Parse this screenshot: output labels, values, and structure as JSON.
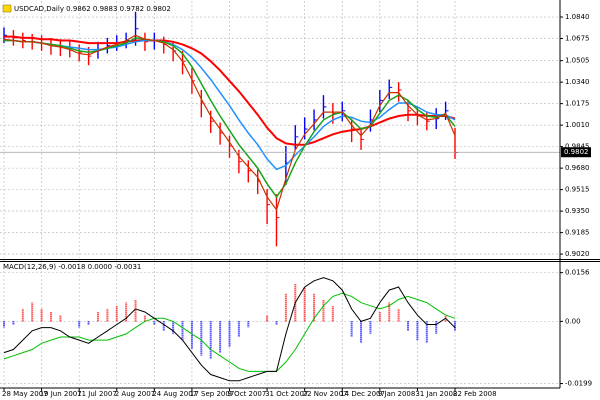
{
  "chart_data": [
    {
      "type": "ohlc",
      "title": "USDCAD,Daily  0.9862 0.9883 0.9782 0.9802",
      "categories": [
        "28 May 2007",
        null,
        null,
        null,
        "19 Jun 2007",
        null,
        null,
        null,
        "11 Jul 2007",
        null,
        null,
        null,
        "2 Aug 2007",
        null,
        null,
        null,
        "24 Aug 2007",
        null,
        null,
        null,
        "17 Sep 2007",
        null,
        null,
        null,
        "9 Oct 2007",
        null,
        null,
        null,
        "31 Oct 2007",
        null,
        null,
        null,
        "22 Nov 2007",
        null,
        null,
        null,
        "14 Dec 2007",
        null,
        null,
        null,
        "9 Jan 2008",
        null,
        null,
        null,
        "31 Jan 2008",
        null,
        null,
        null,
        "22 Feb 2008"
      ],
      "high": [
        1.076,
        1.074,
        1.072,
        1.071,
        1.07,
        1.068,
        1.067,
        1.066,
        1.063,
        1.061,
        1.065,
        1.068,
        1.07,
        1.072,
        1.088,
        1.072,
        1.072,
        1.069,
        1.065,
        1.058,
        1.045,
        1.028,
        1.012,
        1.003,
        0.993,
        0.982,
        0.974,
        0.967,
        0.952,
        0.948,
        0.985,
        1.001,
        1.007,
        1.013,
        1.024,
        1.018,
        1.019,
        1.006,
        0.999,
        1.013,
        1.028,
        1.036,
        1.034,
        1.02,
        1.015,
        1.011,
        1.014,
        1.019,
        0.999
      ],
      "low": [
        1.064,
        1.062,
        1.06,
        1.059,
        1.058,
        1.055,
        1.054,
        1.053,
        1.05,
        1.047,
        1.052,
        1.056,
        1.058,
        1.06,
        1.062,
        1.058,
        1.059,
        1.056,
        1.05,
        1.04,
        1.025,
        1.007,
        0.995,
        0.986,
        0.976,
        0.964,
        0.957,
        0.948,
        0.925,
        0.908,
        0.955,
        0.982,
        0.99,
        0.997,
        1.006,
        1.002,
        1.004,
        0.988,
        0.982,
        0.996,
        1.011,
        1.021,
        1.019,
        1.004,
        1.001,
        0.997,
        0.998,
        1.005,
        0.975
      ],
      "close": [
        1.07,
        1.068,
        1.066,
        1.065,
        1.064,
        1.062,
        1.061,
        1.06,
        1.057,
        1.054,
        1.059,
        1.062,
        1.064,
        1.066,
        1.075,
        1.065,
        1.066,
        1.063,
        1.058,
        1.05,
        1.035,
        1.018,
        1.004,
        0.995,
        0.985,
        0.973,
        0.966,
        0.958,
        0.94,
        0.93,
        0.972,
        0.992,
        0.998,
        1.005,
        1.015,
        1.01,
        1.012,
        0.998,
        0.99,
        1.005,
        1.02,
        1.03,
        1.028,
        1.012,
        1.008,
        1.004,
        1.006,
        1.012,
        0.98
      ],
      "up_color": "#0000ff",
      "down_color": "#ff0000",
      "lines": [
        {
          "color": "#ff0000",
          "width": 2,
          "values": [
            1.069,
            1.069,
            1.068,
            1.068,
            1.067,
            1.067,
            1.066,
            1.066,
            1.065,
            1.064,
            1.064,
            1.064,
            1.064,
            1.065,
            1.066,
            1.066,
            1.066,
            1.066,
            1.065,
            1.063,
            1.06,
            1.056,
            1.05,
            1.043,
            1.035,
            1.027,
            1.018,
            1.009,
            0.999,
            0.991,
            0.987,
            0.986,
            0.986,
            0.988,
            0.991,
            0.994,
            0.996,
            0.997,
            0.998,
            1.0,
            1.003,
            1.006,
            1.008,
            1.009,
            1.009,
            1.008,
            1.008,
            1.008,
            1.006
          ]
        },
        {
          "color": "#1e90ff",
          "width": 1.5,
          "values": [
            1.066,
            1.066,
            1.065,
            1.065,
            1.064,
            1.063,
            1.062,
            1.061,
            1.06,
            1.059,
            1.059,
            1.06,
            1.061,
            1.063,
            1.065,
            1.066,
            1.066,
            1.065,
            1.063,
            1.059,
            1.053,
            1.045,
            1.036,
            1.026,
            1.016,
            1.005,
            0.995,
            0.986,
            0.975,
            0.967,
            0.97,
            0.978,
            0.985,
            0.992,
            1.0,
            1.005,
            1.008,
            1.007,
            1.004,
            1.003,
            1.007,
            1.013,
            1.018,
            1.018,
            1.015,
            1.011,
            1.009,
            1.009,
            1.005
          ]
        },
        {
          "color": "#1aa31a",
          "width": 1.5,
          "values": [
            1.066,
            1.066,
            1.065,
            1.065,
            1.064,
            1.063,
            1.062,
            1.06,
            1.058,
            1.057,
            1.058,
            1.06,
            1.062,
            1.064,
            1.068,
            1.067,
            1.066,
            1.065,
            1.062,
            1.056,
            1.046,
            1.033,
            1.02,
            1.008,
            0.997,
            0.986,
            0.977,
            0.968,
            0.956,
            0.946,
            0.956,
            0.972,
            0.985,
            0.996,
            1.005,
            1.009,
            1.011,
            1.005,
            0.998,
            1.0,
            1.01,
            1.02,
            1.024,
            1.02,
            1.013,
            1.008,
            1.007,
            1.009,
            1.0
          ]
        },
        {
          "color": "#c83200",
          "width": 1.2,
          "values": [
            1.067,
            1.066,
            1.065,
            1.065,
            1.064,
            1.062,
            1.061,
            1.059,
            1.056,
            1.055,
            1.058,
            1.061,
            1.063,
            1.066,
            1.07,
            1.067,
            1.066,
            1.064,
            1.059,
            1.05,
            1.036,
            1.021,
            1.008,
            0.998,
            0.988,
            0.977,
            0.969,
            0.961,
            0.946,
            0.936,
            0.96,
            0.982,
            0.994,
            1.002,
            1.011,
            1.011,
            1.011,
            1.001,
            0.993,
            1.001,
            1.016,
            1.026,
            1.026,
            1.016,
            1.009,
            1.005,
            1.006,
            1.01,
            0.993
          ]
        }
      ],
      "last_price": 0.9802,
      "ylim": [
        0.899,
        1.094
      ],
      "yticks": [
        {
          "value": 1.084,
          "label": "1.0840"
        },
        1.0675,
        1.0505,
        {
          "value": 1.034,
          "label": "1.0340"
        },
        1.0175,
        {
          "value": 1.001,
          "label": "1.0010"
        },
        0.9845,
        {
          "value": 0.968,
          "label": "0.9680"
        },
        0.9515,
        {
          "value": 0.935,
          "label": "0.9350"
        },
        0.9185,
        {
          "value": 0.902,
          "label": "0.9020"
        }
      ],
      "grid": true
    },
    {
      "type": "macd",
      "title": "MACD(12,26,9) -0.0018 0.0000 -0.0031",
      "histogram": [
        -0.002,
        -0.001,
        0.004,
        0.006,
        0.004,
        0.003,
        0.002,
        0.0,
        -0.002,
        -0.001,
        0.003,
        0.004,
        0.005,
        0.006,
        0.007,
        0.002,
        -0.001,
        -0.003,
        -0.004,
        -0.006,
        -0.009,
        -0.011,
        -0.012,
        -0.01,
        -0.008,
        -0.005,
        -0.002,
        0.0,
        0.002,
        -0.001,
        0.009,
        0.012,
        0.011,
        0.009,
        0.007,
        0.005,
        0.0,
        -0.005,
        -0.007,
        -0.004,
        0.003,
        0.006,
        0.004,
        -0.003,
        -0.006,
        -0.007,
        -0.004,
        0.002,
        -0.003
      ],
      "positive_color": "#ff0000",
      "negative_color": "#0000ff",
      "macd": [
        -0.01,
        -0.009,
        -0.006,
        -0.003,
        -0.002,
        -0.002,
        -0.003,
        -0.005,
        -0.006,
        -0.007,
        -0.005,
        -0.003,
        -0.001,
        0.001,
        0.004,
        0.003,
        0.001,
        -0.001,
        -0.003,
        -0.006,
        -0.01,
        -0.014,
        -0.017,
        -0.018,
        -0.019,
        -0.019,
        -0.018,
        -0.017,
        -0.016,
        -0.016,
        -0.004,
        0.006,
        0.011,
        0.013,
        0.014,
        0.013,
        0.01,
        0.004,
        0.0,
        0.001,
        0.006,
        0.01,
        0.011,
        0.006,
        0.002,
        -0.001,
        -0.001,
        0.001,
        -0.002
      ],
      "macd_color": "#000000",
      "signal": [
        -0.012,
        -0.011,
        -0.01,
        -0.009,
        -0.007,
        -0.006,
        -0.005,
        -0.005,
        -0.005,
        -0.006,
        -0.006,
        -0.006,
        -0.005,
        -0.004,
        -0.002,
        0.0,
        0.001,
        0.001,
        0.0,
        -0.002,
        -0.004,
        -0.006,
        -0.009,
        -0.011,
        -0.013,
        -0.015,
        -0.016,
        -0.016,
        -0.016,
        -0.016,
        -0.013,
        -0.009,
        -0.004,
        0.001,
        0.005,
        0.008,
        0.009,
        0.008,
        0.006,
        0.005,
        0.004,
        0.005,
        0.007,
        0.008,
        0.007,
        0.006,
        0.004,
        0.002,
        0.001
      ],
      "signal_color": "#00c000",
      "ylim": [
        -0.021,
        0.019
      ],
      "yticks": [
        0.0156,
        {
          "value": 0,
          "label": "0.00"
        },
        -0.0199
      ],
      "grid": true
    }
  ]
}
